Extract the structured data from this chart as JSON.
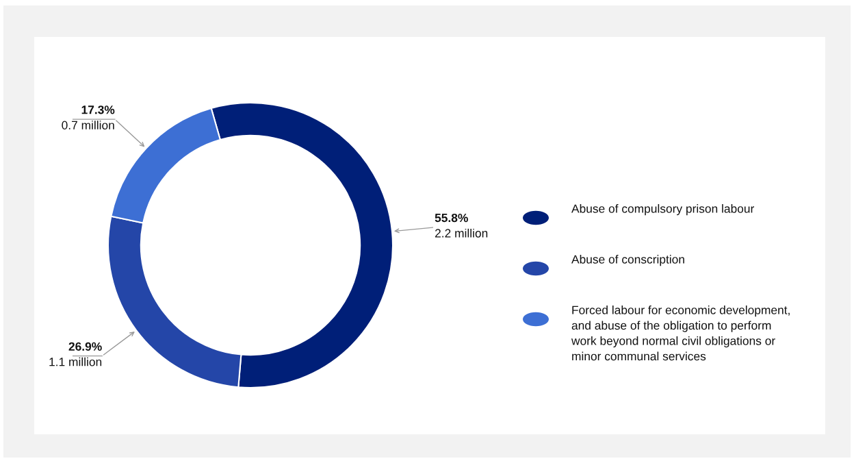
{
  "chart_data": {
    "type": "donut",
    "categories": [
      "Abuse of compulsory prison labour",
      "Abuse of conscription",
      "Forced labour for economic development, and abuse of the obligation to perform work beyond normal civil obligations or minor communal services"
    ],
    "values": [
      55.8,
      26.9,
      17.3
    ],
    "colors": [
      "#001f78",
      "#2446a8",
      "#3d6fd4"
    ],
    "value_labels": [
      "55.8%\n2.2 million",
      "26.9%\n1.1 million",
      "17.3%\n0.7 million"
    ],
    "legend": "right"
  }
}
